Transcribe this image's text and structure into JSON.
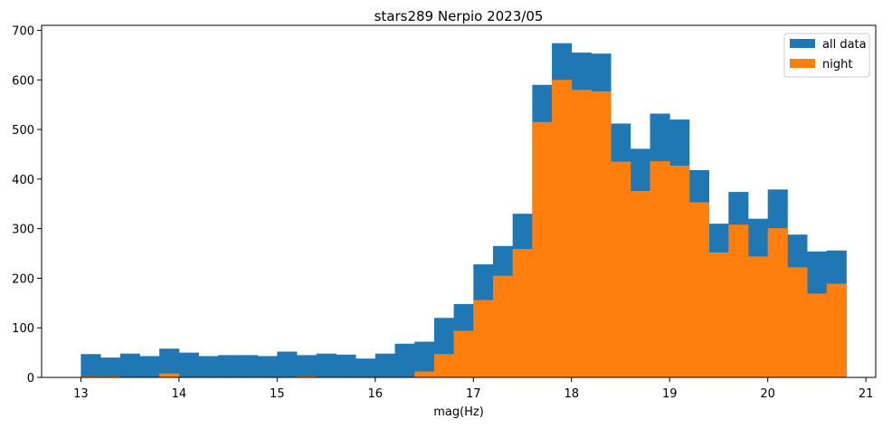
{
  "chart_data": {
    "type": "bar",
    "title": "stars289 Nerpio 2023/05",
    "xlabel": "mag(Hz)",
    "ylabel": "",
    "xlim": [
      12.6,
      21.1
    ],
    "ylim": [
      0,
      710
    ],
    "bin_start": 13.0,
    "bin_width": 0.2,
    "x_ticks": [
      "13",
      "14",
      "15",
      "16",
      "17",
      "18",
      "19",
      "20",
      "21"
    ],
    "y_ticks": [
      "0",
      "100",
      "200",
      "300",
      "400",
      "500",
      "600",
      "700"
    ],
    "grid": false,
    "legend_position": "top-right",
    "series": [
      {
        "name": "all data",
        "color": "#1f77b4",
        "values": [
          47,
          40,
          48,
          43,
          58,
          50,
          43,
          45,
          45,
          43,
          52,
          45,
          48,
          46,
          38,
          48,
          68,
          72,
          120,
          148,
          228,
          265,
          330,
          590,
          674,
          655,
          653,
          512,
          461,
          532,
          520,
          418,
          310,
          374,
          320,
          379,
          288,
          254,
          256
        ]
      },
      {
        "name": "night",
        "color": "#ff7f0e",
        "values": [
          2,
          2,
          0,
          0,
          8,
          0,
          0,
          0,
          0,
          0,
          0,
          2,
          0,
          0,
          0,
          0,
          0,
          12,
          47,
          94,
          156,
          205,
          259,
          515,
          600,
          580,
          577,
          435,
          376,
          436,
          427,
          353,
          252,
          308,
          244,
          301,
          222,
          169,
          189
        ]
      }
    ]
  }
}
